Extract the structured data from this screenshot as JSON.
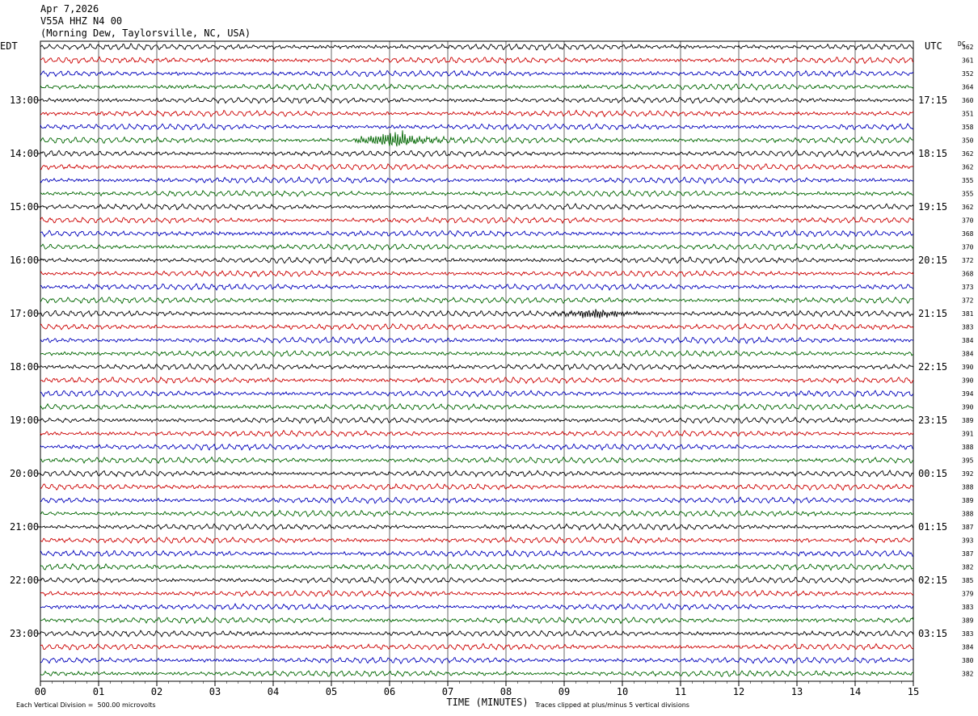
{
  "header": {
    "date": "Apr 7,2026",
    "station": "V55A HHZ N4 00",
    "location": "(Morning Dew, Taylorsville, NC, USA)"
  },
  "chart_data": {
    "type": "line",
    "plot_kind": "helicorder",
    "left_axis_label": "EDT",
    "right_axis_label": "UTC",
    "dc_label": "DC",
    "left_hour_labels": [
      "13:00",
      "14:00",
      "15:00",
      "16:00",
      "17:00",
      "18:00",
      "19:00",
      "20:00",
      "21:00",
      "22:00",
      "23:00"
    ],
    "right_hour_labels": [
      "17:15",
      "18:15",
      "19:15",
      "20:15",
      "21:15",
      "22:15",
      "23:15",
      "00:15",
      "01:15",
      "02:15",
      "03:15"
    ],
    "first_labeled_row": 4,
    "rows_per_hour": 4,
    "x_ticks": [
      "00",
      "01",
      "02",
      "03",
      "04",
      "05",
      "06",
      "07",
      "08",
      "09",
      "10",
      "11",
      "12",
      "13",
      "14",
      "15"
    ],
    "xlim": [
      0,
      15
    ],
    "xlabel": "TIME (MINUTES)",
    "trace_colors": [
      "#000000",
      "#cc0000",
      "#0000bb",
      "#006600"
    ],
    "dc_offsets": [
      362,
      361,
      352,
      364,
      360,
      351,
      358,
      350,
      362,
      362,
      355,
      355,
      362,
      370,
      368,
      370,
      372,
      368,
      373,
      372,
      381,
      383,
      384,
      384,
      390,
      390,
      394,
      390,
      389,
      391,
      388,
      395,
      392,
      388,
      389,
      388,
      387,
      393,
      387,
      382,
      385,
      379,
      383,
      389,
      383,
      384,
      380,
      382
    ],
    "events": [
      {
        "row": 7,
        "minute": 6.1,
        "amplitude": "large"
      },
      {
        "row": 20,
        "minute": 9.5,
        "amplitude": "medium"
      }
    ],
    "footer_left": "Each Vertical Division =  500.00 microvolts",
    "footer_right": "Traces clipped at plus/minus 5 vertical divisions"
  }
}
